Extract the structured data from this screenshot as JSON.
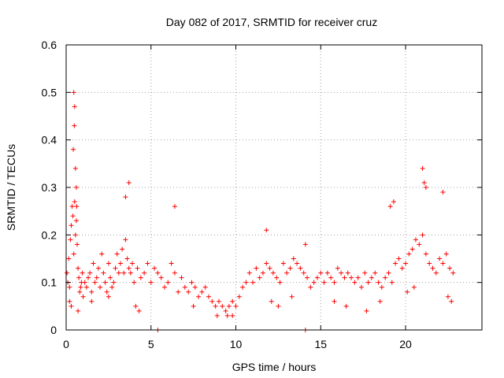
{
  "chart_data": {
    "type": "scatter",
    "title": "Day 082 of 2017, SRMTID for receiver cruz",
    "xlabel": "GPS time / hours",
    "ylabel": "SRMTID / TECUs",
    "xlim": [
      0,
      24.5
    ],
    "ylim": [
      0,
      0.6
    ],
    "x_ticks": [
      0,
      5,
      10,
      15,
      20
    ],
    "x_tick_labels": [
      "0",
      "5",
      "10",
      "15",
      "20"
    ],
    "y_ticks": [
      0,
      0.1,
      0.2,
      0.3,
      0.4,
      0.5,
      0.6
    ],
    "y_tick_labels": [
      "0",
      "0.1",
      "0.2",
      "0.3",
      "0.4",
      "0.5",
      "0.6"
    ],
    "grid": true,
    "marker": "+",
    "color": "#ff0000",
    "series": [
      {
        "name": "SRMTID",
        "x": [
          0.05,
          0.1,
          0.15,
          0.2,
          0.25,
          0.3,
          0.35,
          0.4,
          0.45,
          0.5,
          0.55,
          0.6,
          0.65,
          0.7,
          0.75,
          0.8,
          0.85,
          0.9,
          0.95,
          1.0,
          1.1,
          1.2,
          1.3,
          1.4,
          1.5,
          1.6,
          1.7,
          1.8,
          1.9,
          2.0,
          2.1,
          2.2,
          2.3,
          2.4,
          2.5,
          2.6,
          2.7,
          2.8,
          2.9,
          3.0,
          3.1,
          3.2,
          3.3,
          3.4,
          3.5,
          3.6,
          3.7,
          3.8,
          3.9,
          4.0,
          4.2,
          4.4,
          4.6,
          4.8,
          5.0,
          5.2,
          5.4,
          5.6,
          5.8,
          6.0,
          6.2,
          6.4,
          6.6,
          6.8,
          7.0,
          7.2,
          7.4,
          7.6,
          7.8,
          8.0,
          8.2,
          8.4,
          8.6,
          8.8,
          9.0,
          9.2,
          9.4,
          9.6,
          9.8,
          10.0,
          10.2,
          10.4,
          10.6,
          10.8,
          11.0,
          11.2,
          11.4,
          11.6,
          11.8,
          12.0,
          12.2,
          12.4,
          12.6,
          12.8,
          13.0,
          13.2,
          13.4,
          13.6,
          13.8,
          14.0,
          14.2,
          14.4,
          14.6,
          14.8,
          15.0,
          15.2,
          15.4,
          15.6,
          15.8,
          16.0,
          16.2,
          16.4,
          16.6,
          16.8,
          17.0,
          17.2,
          17.4,
          17.6,
          17.8,
          18.0,
          18.2,
          18.4,
          18.6,
          18.8,
          19.0,
          19.2,
          19.4,
          19.6,
          19.8,
          20.0,
          20.2,
          20.4,
          20.6,
          20.8,
          21.0,
          21.2,
          21.4,
          21.6,
          21.8,
          22.0,
          22.2,
          22.4,
          22.6,
          22.8,
          0.45,
          0.48,
          0.5,
          0.42,
          0.55,
          0.6,
          0.62,
          3.5,
          3.7,
          6.4,
          11.8,
          14.1,
          14.1,
          5.4,
          21.0,
          21.1,
          21.2,
          22.2,
          19.1,
          19.3,
          0.2,
          0.3,
          0.7,
          1.5,
          2.5,
          4.1,
          4.3,
          7.5,
          8.9,
          9.5,
          9.8,
          12.1,
          12.5,
          13.3,
          15.8,
          16.5,
          17.7,
          18.5,
          20.1,
          20.5,
          22.5,
          22.7
        ],
        "y": [
          0.12,
          0.1,
          0.15,
          0.09,
          0.19,
          0.22,
          0.26,
          0.24,
          0.16,
          0.27,
          0.2,
          0.23,
          0.18,
          0.13,
          0.11,
          0.08,
          0.09,
          0.1,
          0.12,
          0.07,
          0.1,
          0.09,
          0.11,
          0.12,
          0.08,
          0.14,
          0.1,
          0.11,
          0.13,
          0.09,
          0.16,
          0.12,
          0.1,
          0.08,
          0.14,
          0.11,
          0.09,
          0.1,
          0.13,
          0.16,
          0.12,
          0.14,
          0.17,
          0.12,
          0.19,
          0.15,
          0.13,
          0.12,
          0.14,
          0.1,
          0.13,
          0.11,
          0.12,
          0.14,
          0.1,
          0.13,
          0.12,
          0.11,
          0.09,
          0.1,
          0.14,
          0.12,
          0.08,
          0.11,
          0.09,
          0.08,
          0.1,
          0.09,
          0.07,
          0.08,
          0.09,
          0.07,
          0.06,
          0.05,
          0.06,
          0.05,
          0.04,
          0.05,
          0.06,
          0.05,
          0.07,
          0.09,
          0.1,
          0.12,
          0.1,
          0.13,
          0.11,
          0.12,
          0.14,
          0.13,
          0.12,
          0.11,
          0.1,
          0.14,
          0.12,
          0.13,
          0.15,
          0.14,
          0.13,
          0.12,
          0.11,
          0.09,
          0.1,
          0.11,
          0.12,
          0.1,
          0.12,
          0.11,
          0.1,
          0.13,
          0.12,
          0.11,
          0.12,
          0.11,
          0.1,
          0.11,
          0.09,
          0.12,
          0.1,
          0.11,
          0.12,
          0.1,
          0.09,
          0.11,
          0.12,
          0.1,
          0.14,
          0.15,
          0.13,
          0.14,
          0.16,
          0.17,
          0.19,
          0.18,
          0.2,
          0.16,
          0.14,
          0.13,
          0.12,
          0.15,
          0.14,
          0.16,
          0.13,
          0.12,
          0.5,
          0.43,
          0.47,
          0.38,
          0.34,
          0.3,
          0.26,
          0.28,
          0.31,
          0.26,
          0.21,
          0.18,
          0.0,
          0.0,
          0.34,
          0.31,
          0.3,
          0.29,
          0.26,
          0.27,
          0.06,
          0.05,
          0.04,
          0.06,
          0.07,
          0.05,
          0.04,
          0.05,
          0.03,
          0.03,
          0.03,
          0.06,
          0.05,
          0.07,
          0.06,
          0.05,
          0.04,
          0.06,
          0.08,
          0.09,
          0.07,
          0.06
        ]
      }
    ]
  }
}
